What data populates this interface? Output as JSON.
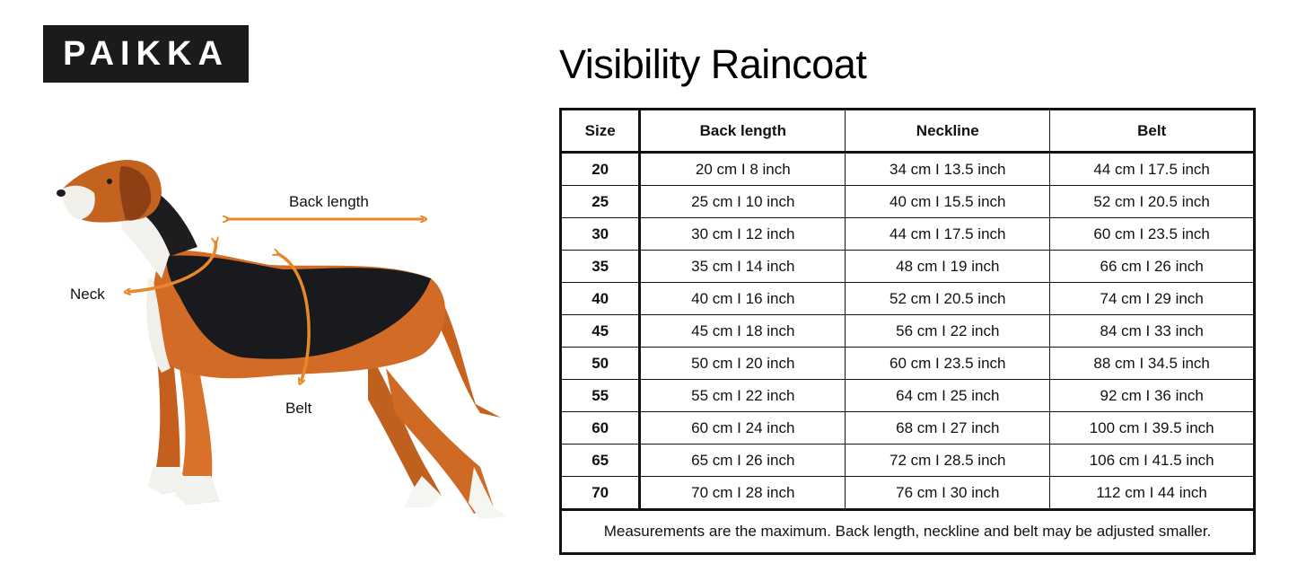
{
  "brand": {
    "logo_text": "PAIKKA"
  },
  "page": {
    "title": "Visibility Raincoat"
  },
  "diagram": {
    "back_length_label": "Back length",
    "neck_label": "Neck",
    "belt_label": "Belt",
    "arrow_color": "#e8882b"
  },
  "size_table": {
    "headers": [
      "Size",
      "Back length",
      "Neckline",
      "Belt"
    ],
    "rows": [
      [
        "20",
        "20 cm I 8 inch",
        "34 cm I 13.5 inch",
        "44 cm I 17.5 inch"
      ],
      [
        "25",
        "25 cm I 10 inch",
        "40 cm I 15.5 inch",
        "52 cm I 20.5 inch"
      ],
      [
        "30",
        "30 cm I 12 inch",
        "44 cm I 17.5 inch",
        "60 cm I 23.5 inch"
      ],
      [
        "35",
        "35 cm I 14 inch",
        "48 cm I 19 inch",
        "66 cm I 26 inch"
      ],
      [
        "40",
        "40 cm I 16 inch",
        "52 cm I 20.5 inch",
        "74 cm I 29 inch"
      ],
      [
        "45",
        "45 cm I 18 inch",
        "56 cm I 22 inch",
        "84 cm I 33 inch"
      ],
      [
        "50",
        "50 cm I 20 inch",
        "60 cm I 23.5 inch",
        "88 cm I 34.5 inch"
      ],
      [
        "55",
        "55 cm I 22 inch",
        "64 cm I 25 inch",
        "92 cm I 36 inch"
      ],
      [
        "60",
        "60 cm I 24 inch",
        "68 cm I 27 inch",
        "100 cm I 39.5 inch"
      ],
      [
        "65",
        "65 cm I 26 inch",
        "72 cm I 28.5 inch",
        "106 cm I 41.5 inch"
      ],
      [
        "70",
        "70 cm I 28 inch",
        "76 cm I 30 inch",
        "112 cm I 44 inch"
      ]
    ],
    "note": "Measurements are the maximum. Back length, neckline and belt may be adjusted smaller."
  }
}
